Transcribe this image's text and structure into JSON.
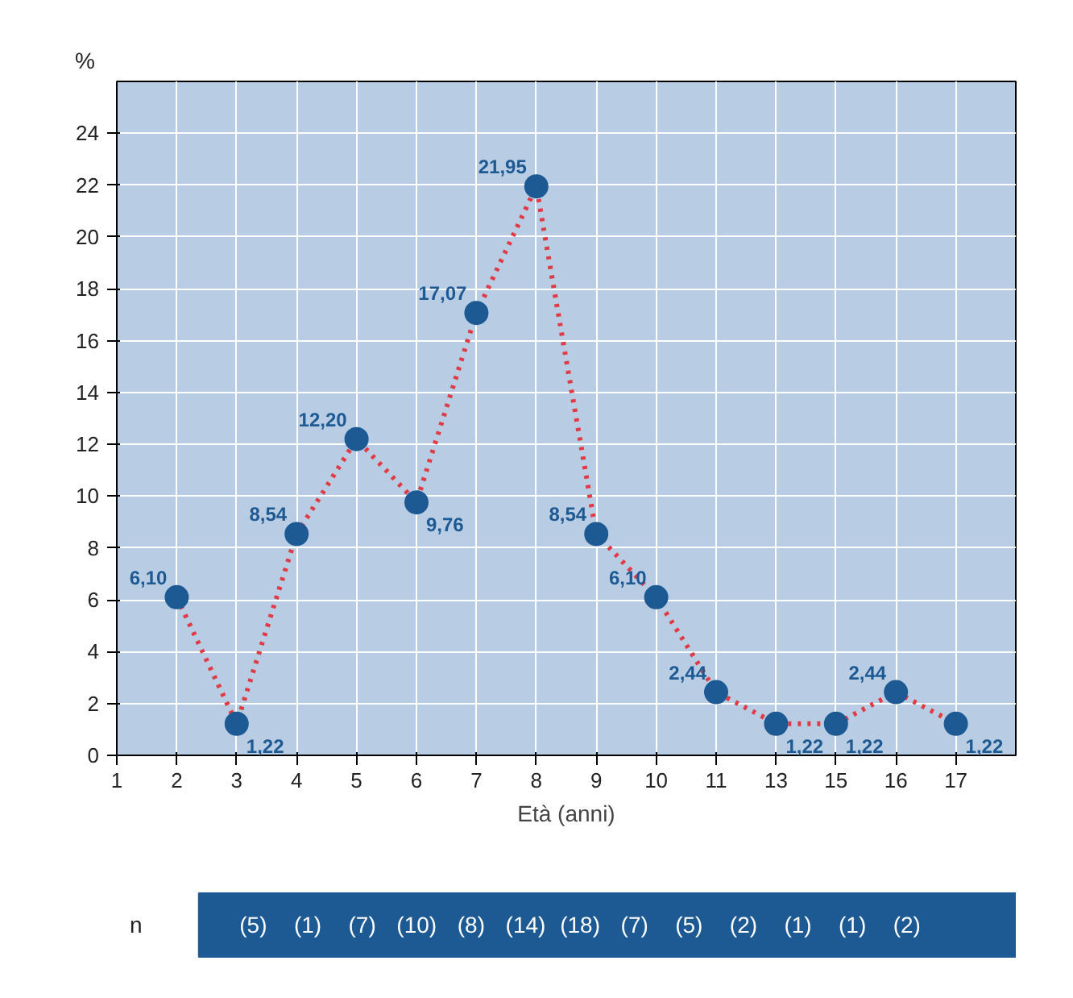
{
  "chart_data": {
    "type": "line",
    "xlabel": "Età (anni)",
    "ylabel": "%",
    "categories": [
      "1",
      "2",
      "3",
      "4",
      "5",
      "6",
      "7",
      "8",
      "9",
      "10",
      "11",
      "13",
      "15",
      "16",
      "17"
    ],
    "series": [
      {
        "color": "#e03a44",
        "values": [
          null,
          6.1,
          1.22,
          8.54,
          12.2,
          9.76,
          17.07,
          21.95,
          8.54,
          6.1,
          2.44,
          1.22,
          1.22,
          2.44,
          1.22
        ],
        "value_labels": [
          null,
          "6,10",
          "1,22",
          "8,54",
          "12,20",
          "9,76",
          "17,07",
          "21,95",
          "8,54",
          "6,10",
          "2,44",
          "1,22",
          "1,22",
          "2,44",
          "1,22"
        ]
      }
    ],
    "ylim": [
      0,
      26
    ],
    "yticks": [
      0,
      2,
      4,
      6,
      8,
      10,
      12,
      14,
      16,
      18,
      20,
      22,
      24
    ],
    "grid": true,
    "marker": "circle",
    "line_style": "dotted",
    "annotations": [
      "n",
      "(5)",
      "(1)",
      "(7)",
      "(10)",
      "(8)",
      "(14)",
      "(18)",
      "(7)",
      "(5)",
      "(2)",
      "(1)",
      "(1)",
      "(2)"
    ]
  }
}
